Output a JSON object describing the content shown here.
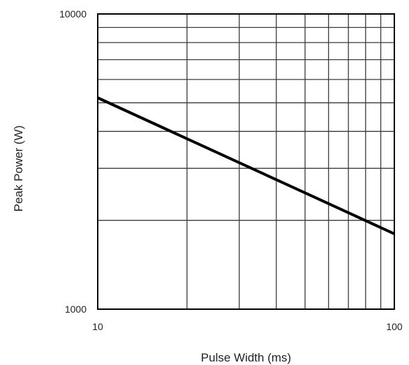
{
  "chart_data": {
    "type": "line",
    "title": "",
    "xlabel": "Pulse Width (ms)",
    "ylabel": "Peak Power (W)",
    "x_scale": "log",
    "y_scale": "log",
    "xlim": [
      10,
      100
    ],
    "ylim": [
      1000,
      10000
    ],
    "x_tick_labels": [
      {
        "value": 10,
        "label": "10"
      },
      {
        "value": 100,
        "label": "100"
      }
    ],
    "y_tick_labels": [
      {
        "value": 1000,
        "label": "1000"
      },
      {
        "value": 10000,
        "label": "10000"
      }
    ],
    "grid": true,
    "grid_x_values": [
      20,
      30,
      40,
      50,
      60,
      70,
      80,
      90
    ],
    "grid_y_values": [
      2000,
      3000,
      4000,
      5000,
      6000,
      7000,
      8000,
      9000
    ],
    "series": [
      {
        "points": [
          {
            "x": 10,
            "y": 5200
          },
          {
            "x": 100,
            "y": 1800
          }
        ]
      }
    ],
    "colors": {
      "line": "#000000",
      "grid": "#3a3a3a",
      "frame": "#000000",
      "text": "#222222"
    }
  }
}
